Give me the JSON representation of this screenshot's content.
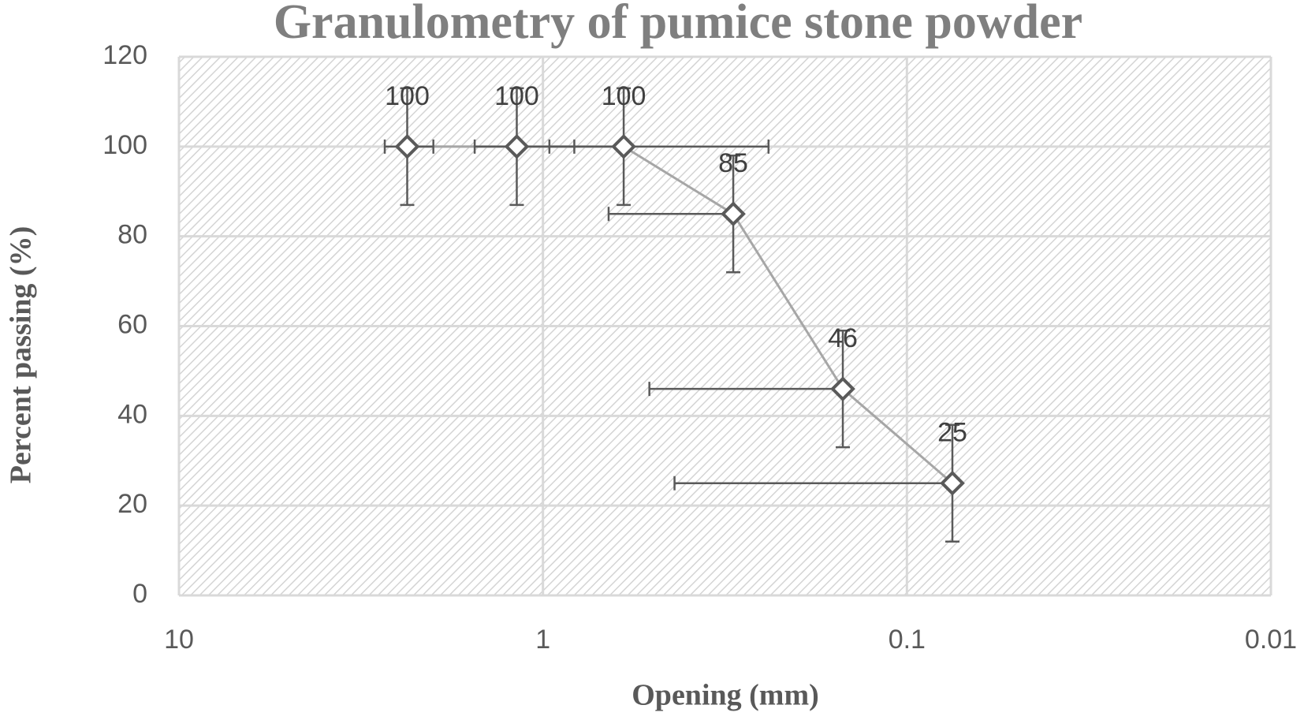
{
  "chart_data": {
    "type": "scatter-line",
    "title": "Granulometry of pumice stone powder",
    "x_label": "Opening (mm)",
    "y_label": "Percent passing (%)",
    "x": [
      2.36,
      1.18,
      0.6,
      0.3,
      0.15,
      0.075
    ],
    "values": [
      100,
      100,
      100,
      85,
      46,
      25
    ],
    "y_error": [
      13,
      13,
      13,
      13,
      13,
      13
    ],
    "x_error": [
      0.36,
      0.36,
      0.36,
      0.36,
      0.36,
      0.36
    ],
    "color": "#5a5a5a",
    "line_color": "#a6a6a6",
    "xlim": [
      10,
      0.01
    ],
    "xticks": [
      10,
      1,
      0.1,
      0.01
    ],
    "x_log": true,
    "ylim": [
      0,
      120
    ],
    "yticks": [
      0,
      20,
      40,
      60,
      80,
      100,
      120
    ],
    "grid": true
  }
}
